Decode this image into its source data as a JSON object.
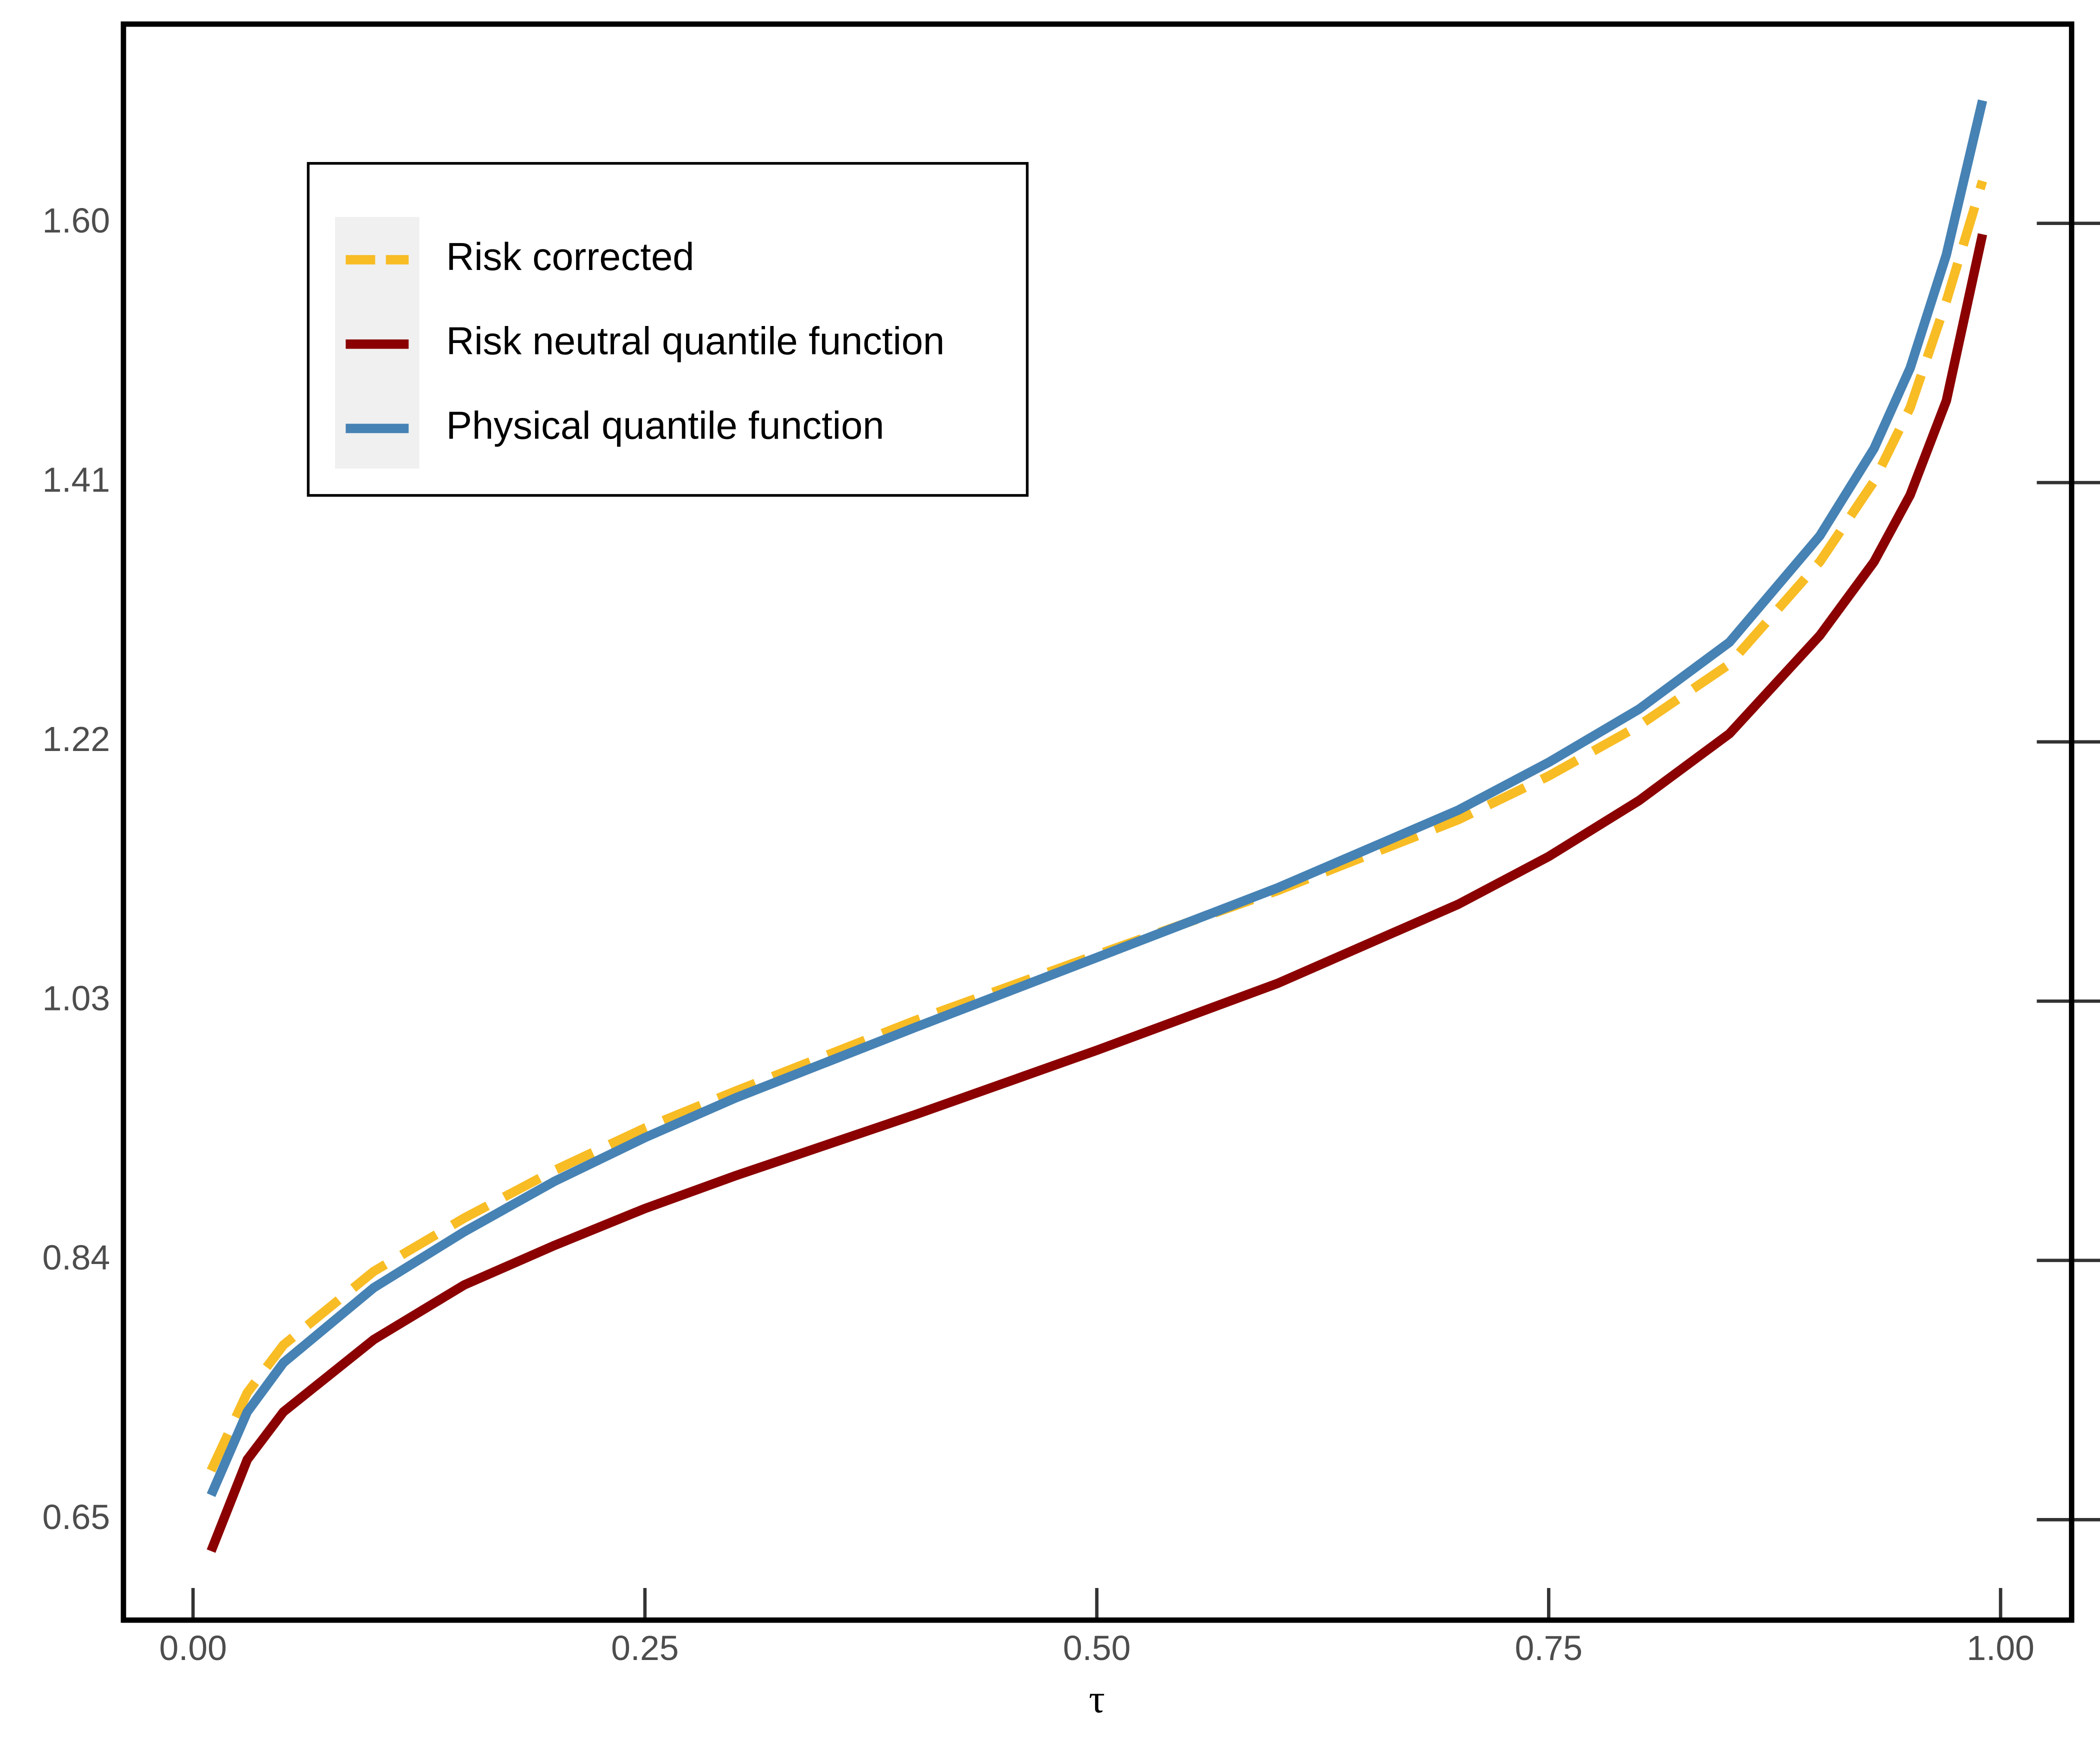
{
  "chart_data": {
    "type": "line",
    "x_label": "τ",
    "x": [
      0.01,
      0.03,
      0.05,
      0.1,
      0.15,
      0.2,
      0.25,
      0.3,
      0.4,
      0.5,
      0.6,
      0.7,
      0.75,
      0.8,
      0.85,
      0.9,
      0.93,
      0.95,
      0.97,
      0.99
    ],
    "series": [
      {
        "name": "Risk corrected",
        "color": "#f8bc24",
        "dashed": true,
        "values": [
          0.686,
          0.743,
          0.778,
          0.832,
          0.871,
          0.906,
          0.937,
          0.964,
          1.016,
          1.064,
          1.111,
          1.163,
          1.195,
          1.232,
          1.277,
          1.352,
          1.411,
          1.465,
          1.543,
          1.631
        ]
      },
      {
        "name": "Risk neutral quantile function",
        "color": "#8b0000",
        "dashed": false,
        "values": [
          0.627,
          0.694,
          0.729,
          0.782,
          0.822,
          0.851,
          0.878,
          0.902,
          0.947,
          0.994,
          1.043,
          1.101,
          1.136,
          1.177,
          1.226,
          1.298,
          1.352,
          1.401,
          1.47,
          1.592
        ]
      },
      {
        "name": "Physical quantile function",
        "color": "#4682b4",
        "dashed": false,
        "values": [
          0.668,
          0.729,
          0.765,
          0.82,
          0.861,
          0.898,
          0.93,
          0.959,
          1.011,
          1.062,
          1.113,
          1.17,
          1.205,
          1.244,
          1.293,
          1.371,
          1.435,
          1.494,
          1.577,
          1.69
        ]
      }
    ],
    "xlim": [
      -0.0385,
      1.0393
    ],
    "ylim": [
      0.5764,
      1.746
    ],
    "xticks": [
      {
        "value": 0,
        "label": "0.00"
      },
      0.25,
      {
        "value": 0.5,
        "label": "0.50"
      },
      0.75,
      {
        "value": 1,
        "label": "1.00"
      }
    ],
    "yticks": [
      0.65,
      0.84,
      1.03,
      1.22,
      1.41,
      {
        "value": 1.6,
        "label": "1.60"
      }
    ],
    "grid": false,
    "legend": "upper left"
  }
}
